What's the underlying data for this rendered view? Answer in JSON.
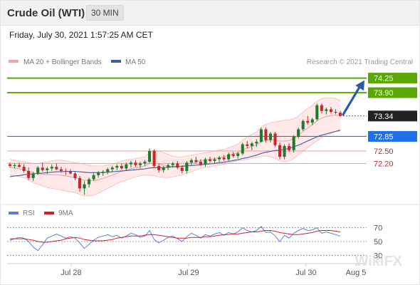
{
  "header": {
    "title": "Crude Oil (WTI)",
    "timeframe": "30 MIN"
  },
  "timestamp": "Friday, July 30, 2021 1:57:25 AM CET",
  "legend": {
    "bollinger": "MA 20 + Bollinger Bands",
    "ma50": "MA 50",
    "rsi": "RSI",
    "rsi_ma": "9MA"
  },
  "copyright": "Research © 2021 Trading Central",
  "watermark": "WikiFX",
  "colors": {
    "up": "#1f7a2e",
    "down": "#c62828",
    "resistance": "#5aa800",
    "support_line": "#3f6fd6",
    "support_label": "#1f6fe8",
    "minor_support": "#ef9a9a",
    "minor_support_text": "#c62828",
    "bollinger": "#f2a3a3",
    "bollinger_fill": "#fde0e0",
    "ma50": "#3a5fa8",
    "last_price_bg": "#222222",
    "arrow": "#2b5aa0",
    "rsi": "#5b7fd6",
    "rsi_ma": "#d62020"
  },
  "chart_data": [
    {
      "type": "candlestick",
      "x_labels": [
        "Jul 28",
        "Jul 29",
        "Jul 30",
        "Aug 5"
      ],
      "ylim": [
        71.42,
        74.5
      ],
      "last_price": 73.34,
      "levels": {
        "resistance": [
          74.25,
          73.9
        ],
        "support": [
          72.85
        ],
        "minor_support": [
          72.5,
          72.2
        ]
      },
      "target": 74.25,
      "candles": [
        {
          "o": 72.18,
          "h": 72.22,
          "l": 72.1,
          "c": 72.14
        },
        {
          "o": 72.14,
          "h": 72.2,
          "l": 72.08,
          "c": 72.16
        },
        {
          "o": 72.16,
          "h": 72.22,
          "l": 72.1,
          "c": 72.12
        },
        {
          "o": 72.12,
          "h": 72.18,
          "l": 71.98,
          "c": 72.02
        },
        {
          "o": 72.02,
          "h": 72.1,
          "l": 71.8,
          "c": 71.85
        },
        {
          "o": 71.85,
          "h": 72.0,
          "l": 71.78,
          "c": 71.96
        },
        {
          "o": 71.96,
          "h": 72.14,
          "l": 71.92,
          "c": 72.1
        },
        {
          "o": 72.1,
          "h": 72.22,
          "l": 72.0,
          "c": 72.04
        },
        {
          "o": 72.04,
          "h": 72.12,
          "l": 71.95,
          "c": 72.08
        },
        {
          "o": 72.08,
          "h": 72.18,
          "l": 72.02,
          "c": 72.12
        },
        {
          "o": 72.12,
          "h": 72.2,
          "l": 72.04,
          "c": 72.06
        },
        {
          "o": 72.06,
          "h": 72.12,
          "l": 71.98,
          "c": 72.02
        },
        {
          "o": 72.02,
          "h": 72.08,
          "l": 71.92,
          "c": 72.0
        },
        {
          "o": 72.0,
          "h": 72.06,
          "l": 71.94,
          "c": 71.96
        },
        {
          "o": 71.96,
          "h": 72.02,
          "l": 71.8,
          "c": 71.85
        },
        {
          "o": 71.85,
          "h": 71.9,
          "l": 71.52,
          "c": 71.6
        },
        {
          "o": 71.6,
          "h": 71.78,
          "l": 71.45,
          "c": 71.7
        },
        {
          "o": 71.7,
          "h": 71.86,
          "l": 71.62,
          "c": 71.82
        },
        {
          "o": 71.82,
          "h": 71.96,
          "l": 71.78,
          "c": 71.92
        },
        {
          "o": 71.92,
          "h": 72.02,
          "l": 71.86,
          "c": 71.98
        },
        {
          "o": 71.98,
          "h": 72.04,
          "l": 71.9,
          "c": 72.0
        },
        {
          "o": 72.0,
          "h": 72.1,
          "l": 71.94,
          "c": 72.06
        },
        {
          "o": 72.06,
          "h": 72.14,
          "l": 72.0,
          "c": 72.1
        },
        {
          "o": 72.1,
          "h": 72.18,
          "l": 72.04,
          "c": 72.14
        },
        {
          "o": 72.14,
          "h": 72.2,
          "l": 72.06,
          "c": 72.08
        },
        {
          "o": 72.08,
          "h": 72.22,
          "l": 72.02,
          "c": 72.18
        },
        {
          "o": 72.18,
          "h": 72.26,
          "l": 72.1,
          "c": 72.22
        },
        {
          "o": 72.22,
          "h": 72.28,
          "l": 72.12,
          "c": 72.16
        },
        {
          "o": 72.16,
          "h": 72.24,
          "l": 72.08,
          "c": 72.2
        },
        {
          "o": 72.2,
          "h": 72.28,
          "l": 72.14,
          "c": 72.24
        },
        {
          "o": 72.24,
          "h": 72.56,
          "l": 72.2,
          "c": 72.5
        },
        {
          "o": 72.5,
          "h": 72.54,
          "l": 72.1,
          "c": 72.14
        },
        {
          "o": 72.14,
          "h": 72.2,
          "l": 71.98,
          "c": 72.04
        },
        {
          "o": 72.04,
          "h": 72.14,
          "l": 71.98,
          "c": 72.1
        },
        {
          "o": 72.1,
          "h": 72.2,
          "l": 72.04,
          "c": 72.16
        },
        {
          "o": 72.16,
          "h": 72.24,
          "l": 72.1,
          "c": 72.2
        },
        {
          "o": 72.2,
          "h": 72.26,
          "l": 72.06,
          "c": 72.1
        },
        {
          "o": 72.1,
          "h": 72.16,
          "l": 71.96,
          "c": 72.02
        },
        {
          "o": 72.02,
          "h": 72.26,
          "l": 71.96,
          "c": 72.22
        },
        {
          "o": 72.22,
          "h": 72.32,
          "l": 72.16,
          "c": 72.28
        },
        {
          "o": 72.28,
          "h": 72.36,
          "l": 72.2,
          "c": 72.24
        },
        {
          "o": 72.24,
          "h": 72.3,
          "l": 72.14,
          "c": 72.18
        },
        {
          "o": 72.18,
          "h": 72.34,
          "l": 72.12,
          "c": 72.3
        },
        {
          "o": 72.3,
          "h": 72.36,
          "l": 72.22,
          "c": 72.26
        },
        {
          "o": 72.26,
          "h": 72.34,
          "l": 72.2,
          "c": 72.3
        },
        {
          "o": 72.3,
          "h": 72.38,
          "l": 72.24,
          "c": 72.34
        },
        {
          "o": 72.34,
          "h": 72.4,
          "l": 72.26,
          "c": 72.3
        },
        {
          "o": 72.3,
          "h": 72.46,
          "l": 72.26,
          "c": 72.42
        },
        {
          "o": 72.42,
          "h": 72.48,
          "l": 72.34,
          "c": 72.38
        },
        {
          "o": 72.38,
          "h": 72.48,
          "l": 72.32,
          "c": 72.44
        },
        {
          "o": 72.44,
          "h": 72.7,
          "l": 72.4,
          "c": 72.66
        },
        {
          "o": 72.66,
          "h": 72.74,
          "l": 72.56,
          "c": 72.62
        },
        {
          "o": 72.62,
          "h": 72.72,
          "l": 72.52,
          "c": 72.68
        },
        {
          "o": 72.68,
          "h": 72.78,
          "l": 72.6,
          "c": 72.72
        },
        {
          "o": 72.72,
          "h": 73.06,
          "l": 72.7,
          "c": 73.02
        },
        {
          "o": 73.02,
          "h": 73.06,
          "l": 72.7,
          "c": 72.76
        },
        {
          "o": 72.76,
          "h": 72.96,
          "l": 72.7,
          "c": 72.92
        },
        {
          "o": 72.92,
          "h": 72.96,
          "l": 72.6,
          "c": 72.64
        },
        {
          "o": 72.64,
          "h": 72.7,
          "l": 72.3,
          "c": 72.36
        },
        {
          "o": 72.36,
          "h": 72.66,
          "l": 72.3,
          "c": 72.62
        },
        {
          "o": 72.62,
          "h": 72.68,
          "l": 72.48,
          "c": 72.52
        },
        {
          "o": 72.52,
          "h": 72.88,
          "l": 72.46,
          "c": 72.84
        },
        {
          "o": 72.84,
          "h": 73.06,
          "l": 72.8,
          "c": 73.02
        },
        {
          "o": 73.02,
          "h": 73.26,
          "l": 72.98,
          "c": 73.22
        },
        {
          "o": 73.22,
          "h": 73.34,
          "l": 73.14,
          "c": 73.18
        },
        {
          "o": 73.18,
          "h": 73.3,
          "l": 73.12,
          "c": 73.26
        },
        {
          "o": 73.26,
          "h": 73.64,
          "l": 73.22,
          "c": 73.6
        },
        {
          "o": 73.6,
          "h": 73.64,
          "l": 73.4,
          "c": 73.46
        },
        {
          "o": 73.46,
          "h": 73.54,
          "l": 73.38,
          "c": 73.5
        },
        {
          "o": 73.5,
          "h": 73.56,
          "l": 73.4,
          "c": 73.44
        },
        {
          "o": 73.44,
          "h": 73.5,
          "l": 73.38,
          "c": 73.42
        },
        {
          "o": 73.42,
          "h": 73.46,
          "l": 73.32,
          "c": 73.34
        }
      ],
      "bollinger_upper": [
        72.3,
        72.28,
        72.26,
        72.24,
        72.22,
        72.2,
        72.2,
        72.22,
        72.24,
        72.26,
        72.28,
        72.28,
        72.26,
        72.24,
        72.22,
        72.2,
        72.18,
        72.16,
        72.14,
        72.14,
        72.14,
        72.16,
        72.18,
        72.22,
        72.26,
        72.28,
        72.3,
        72.32,
        72.34,
        72.36,
        72.48,
        72.52,
        72.5,
        72.46,
        72.42,
        72.38,
        72.36,
        72.36,
        72.38,
        72.4,
        72.42,
        72.44,
        72.46,
        72.48,
        72.5,
        72.52,
        72.54,
        72.58,
        72.62,
        72.66,
        72.76,
        72.84,
        72.9,
        72.96,
        73.08,
        73.14,
        73.18,
        73.2,
        73.22,
        73.24,
        73.24,
        73.28,
        73.34,
        73.44,
        73.52,
        73.6,
        73.7,
        73.76,
        73.78,
        73.78,
        73.76,
        73.72
      ],
      "bollinger_lower": [
        71.92,
        71.9,
        71.88,
        71.86,
        71.8,
        71.74,
        71.7,
        71.66,
        71.62,
        71.6,
        71.58,
        71.56,
        71.54,
        71.52,
        71.5,
        71.46,
        71.42,
        71.42,
        71.44,
        71.48,
        71.54,
        71.6,
        71.66,
        71.72,
        71.76,
        71.8,
        71.84,
        71.88,
        71.9,
        71.92,
        71.92,
        71.9,
        71.88,
        71.86,
        71.86,
        71.88,
        71.9,
        71.92,
        71.96,
        72.0,
        72.04,
        72.08,
        72.1,
        72.12,
        72.14,
        72.16,
        72.18,
        72.2,
        72.24,
        72.26,
        72.28,
        72.3,
        72.32,
        72.34,
        72.36,
        72.38,
        72.36,
        72.32,
        72.26,
        72.24,
        72.26,
        72.32,
        72.4,
        72.5,
        72.58,
        72.66,
        72.74,
        72.82,
        72.88,
        72.92,
        72.96,
        72.98
      ],
      "ma20": [
        72.11,
        72.09,
        72.07,
        72.05,
        72.01,
        71.97,
        71.95,
        71.94,
        71.93,
        71.93,
        71.93,
        71.92,
        71.9,
        71.88,
        71.86,
        71.83,
        71.8,
        71.79,
        71.79,
        71.81,
        71.84,
        71.88,
        71.92,
        71.97,
        72.01,
        72.04,
        72.07,
        72.1,
        72.12,
        72.14,
        72.2,
        72.21,
        72.19,
        72.16,
        72.14,
        72.13,
        72.13,
        72.14,
        72.17,
        72.2,
        72.23,
        72.26,
        72.28,
        72.3,
        72.32,
        72.34,
        72.36,
        72.39,
        72.43,
        72.46,
        72.52,
        72.57,
        72.61,
        72.65,
        72.72,
        72.76,
        72.77,
        72.76,
        72.74,
        72.74,
        72.75,
        72.8,
        72.87,
        72.97,
        73.05,
        73.13,
        73.22,
        73.29,
        73.33,
        73.35,
        73.36,
        73.35
      ],
      "ma50": [
        71.88,
        71.9,
        71.91,
        71.93,
        71.94,
        71.95,
        71.96,
        71.97,
        71.98,
        71.99,
        72.0,
        72.0,
        72.01,
        72.01,
        72.01,
        72.0,
        71.99,
        71.98,
        71.98,
        71.98,
        71.98,
        71.99,
        72.0,
        72.01,
        72.02,
        72.03,
        72.04,
        72.05,
        72.06,
        72.07,
        72.09,
        72.1,
        72.1,
        72.1,
        72.11,
        72.12,
        72.12,
        72.13,
        72.14,
        72.15,
        72.16,
        72.17,
        72.18,
        72.19,
        72.2,
        72.22,
        72.23,
        72.25,
        72.27,
        72.29,
        72.32,
        72.34,
        72.37,
        72.4,
        72.44,
        72.47,
        72.49,
        72.51,
        72.52,
        72.54,
        72.56,
        72.6,
        72.64,
        72.69,
        72.74,
        72.79,
        72.84,
        72.88,
        72.91,
        72.94,
        72.97,
        73.0
      ]
    },
    {
      "type": "line",
      "title": "RSI",
      "ylim": [
        20,
        80
      ],
      "y_ticks": [
        70,
        50,
        30
      ],
      "series": [
        {
          "name": "RSI",
          "values": [
            52,
            54,
            56,
            55,
            50,
            42,
            37,
            45,
            55,
            58,
            61,
            58,
            55,
            57,
            55,
            48,
            40,
            46,
            52,
            56,
            58,
            60,
            57,
            59,
            55,
            58,
            62,
            60,
            56,
            58,
            66,
            53,
            48,
            52,
            56,
            58,
            54,
            50,
            57,
            62,
            59,
            55,
            60,
            58,
            61,
            63,
            59,
            63,
            61,
            64,
            70,
            66,
            64,
            66,
            72,
            63,
            64,
            58,
            50,
            59,
            55,
            62,
            66,
            69,
            66,
            67,
            70,
            62,
            64,
            62,
            60,
            58
          ]
        },
        {
          "name": "9MA",
          "values": [
            54,
            54,
            54,
            54,
            53,
            52,
            50,
            49,
            49,
            50,
            51,
            52,
            54,
            55,
            56,
            55,
            53,
            52,
            51,
            51,
            51,
            52,
            53,
            55,
            56,
            57,
            58,
            58,
            58,
            59,
            60,
            60,
            59,
            58,
            57,
            56,
            55,
            55,
            55,
            56,
            56,
            56,
            57,
            57,
            58,
            59,
            60,
            60,
            61,
            61,
            62,
            63,
            64,
            64,
            65,
            66,
            66,
            65,
            63,
            62,
            61,
            60,
            60,
            61,
            62,
            63,
            65,
            66,
            66,
            66,
            65,
            64
          ]
        }
      ]
    }
  ]
}
